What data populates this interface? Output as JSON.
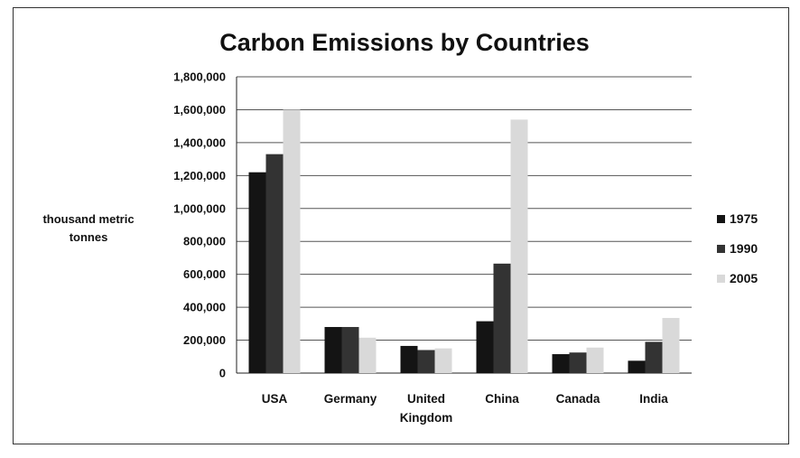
{
  "chart_data": {
    "type": "bar",
    "title": "Carbon Emissions by Countries",
    "ylabel": [
      "thousand metric",
      "tonnes"
    ],
    "xlabel": "",
    "categories": [
      [
        "USA"
      ],
      [
        "Germany"
      ],
      [
        "United",
        "Kingdom"
      ],
      [
        "China"
      ],
      [
        "Canada"
      ],
      [
        "India"
      ]
    ],
    "series": [
      {
        "name": "1975",
        "color": "#141414",
        "values": [
          1220000,
          280000,
          165000,
          315000,
          115000,
          75000
        ]
      },
      {
        "name": "1990",
        "color": "#333333",
        "values": [
          1330000,
          280000,
          140000,
          665000,
          125000,
          190000
        ]
      },
      {
        "name": "2005",
        "color": "#d9d9d9",
        "values": [
          1600000,
          215000,
          150000,
          1540000,
          155000,
          335000
        ]
      }
    ],
    "ylim": [
      0,
      1800000
    ],
    "yticks": [
      0,
      200000,
      400000,
      600000,
      800000,
      1000000,
      1200000,
      1400000,
      1600000,
      1800000
    ],
    "ytick_labels": [
      "0",
      "200,000",
      "400,000",
      "600,000",
      "800,000",
      "1,000,000",
      "1,200,000",
      "1,400,000",
      "1,600,000",
      "1,800,000"
    ],
    "grid": true,
    "legend_position": "right"
  }
}
